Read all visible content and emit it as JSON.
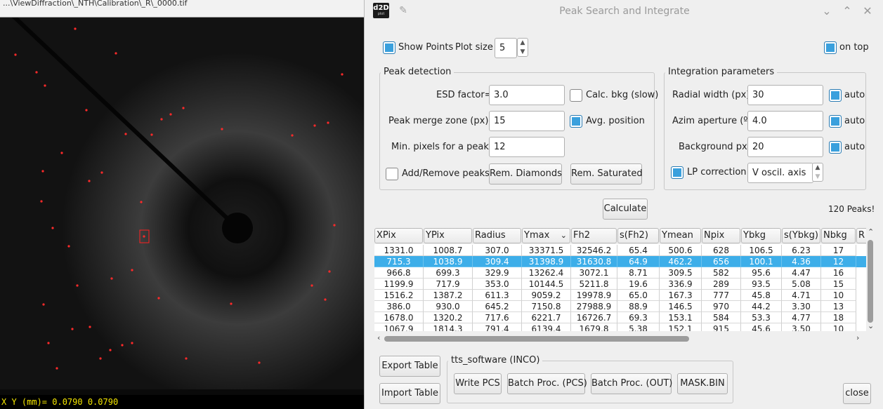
{
  "viewer": {
    "title": "...\\ViewDiffraction\\_NTH\\Calibration\\_R\\_0000.tif",
    "coord_readout": "X Y (mm)= 0.0790 0.0790"
  },
  "dialog": {
    "logo": "d2D",
    "logo_sub": "plot",
    "title": "Peak Search and Integrate",
    "show_points_label": "Show Points",
    "plot_size_label": "Plot size",
    "plot_size_value": "5",
    "on_top_label": "on top",
    "peak_detection": {
      "title": "Peak detection",
      "esd_label": "ESD factor=",
      "esd_value": "3.0",
      "calc_bkg_label": "Calc. bkg (slow)",
      "merge_label": "Peak merge zone (px)=",
      "merge_value": "15",
      "avg_pos_label": "Avg. position",
      "min_pixels_label": "Min. pixels for a peak=",
      "min_pixels_value": "12",
      "add_remove_label": "Add/Remove peaks",
      "rem_diamonds_label": "Rem. Diamonds",
      "rem_saturated_label": "Rem. Saturated"
    },
    "integration": {
      "title": "Integration parameters",
      "radial_label": "Radial width (px)",
      "radial_value": "30",
      "azim_label": "Azim aperture (º)",
      "azim_value": "4.0",
      "background_label": "Background px",
      "background_value": "20",
      "auto_label": "auto",
      "lp_label": "LP correction",
      "lp_value": "V oscil. axis"
    },
    "calculate_label": "Calculate",
    "peaks_count": "120 Peaks!",
    "table": {
      "columns": [
        "XPix",
        "YPix",
        "Radius",
        "Ymax",
        "Fh2",
        "s(Fh2)",
        "Ymean",
        "Npix",
        "Ybkg",
        "s(Ybkg)",
        "Nbkg",
        "R"
      ],
      "rows": [
        [
          "1331.0",
          "1008.7",
          "307.0",
          "33371.5",
          "32546.2",
          "65.4",
          "500.6",
          "628",
          "106.5",
          "6.23",
          "17"
        ],
        [
          "715.3",
          "1038.9",
          "309.4",
          "31398.9",
          "31630.8",
          "64.9",
          "462.2",
          "656",
          "100.1",
          "4.36",
          "12"
        ],
        [
          "966.8",
          "699.3",
          "329.9",
          "13262.4",
          "3072.1",
          "8.71",
          "309.5",
          "582",
          "95.6",
          "4.47",
          "16"
        ],
        [
          "1199.9",
          "717.9",
          "353.0",
          "10144.5",
          "5211.8",
          "19.6",
          "336.9",
          "289",
          "93.5",
          "5.08",
          "15"
        ],
        [
          "1516.2",
          "1387.2",
          "611.3",
          "9059.2",
          "19978.9",
          "65.0",
          "167.3",
          "777",
          "45.8",
          "4.71",
          "10"
        ],
        [
          "386.0",
          "930.0",
          "645.2",
          "7150.8",
          "27988.9",
          "88.9",
          "146.5",
          "970",
          "44.2",
          "3.30",
          "13"
        ],
        [
          "1678.0",
          "1320.2",
          "717.6",
          "6221.7",
          "16726.7",
          "69.3",
          "153.1",
          "584",
          "53.3",
          "4.77",
          "18"
        ],
        [
          "1067.9",
          "1814.3",
          "791.4",
          "6139.4",
          "1679.8",
          "5.38",
          "152.1",
          "915",
          "45.6",
          "3.50",
          "10"
        ]
      ]
    },
    "export_label": "Export Table",
    "import_label": "Import Table",
    "tts": {
      "title": "tts_software (INCO)",
      "write_pcs_label": "Write PCS",
      "batch_pcs_label": "Batch Proc. (PCS)",
      "batch_out_label": "Batch Proc. (OUT)",
      "mask_label": "MASK.BIN"
    },
    "close_label": "close"
  }
}
